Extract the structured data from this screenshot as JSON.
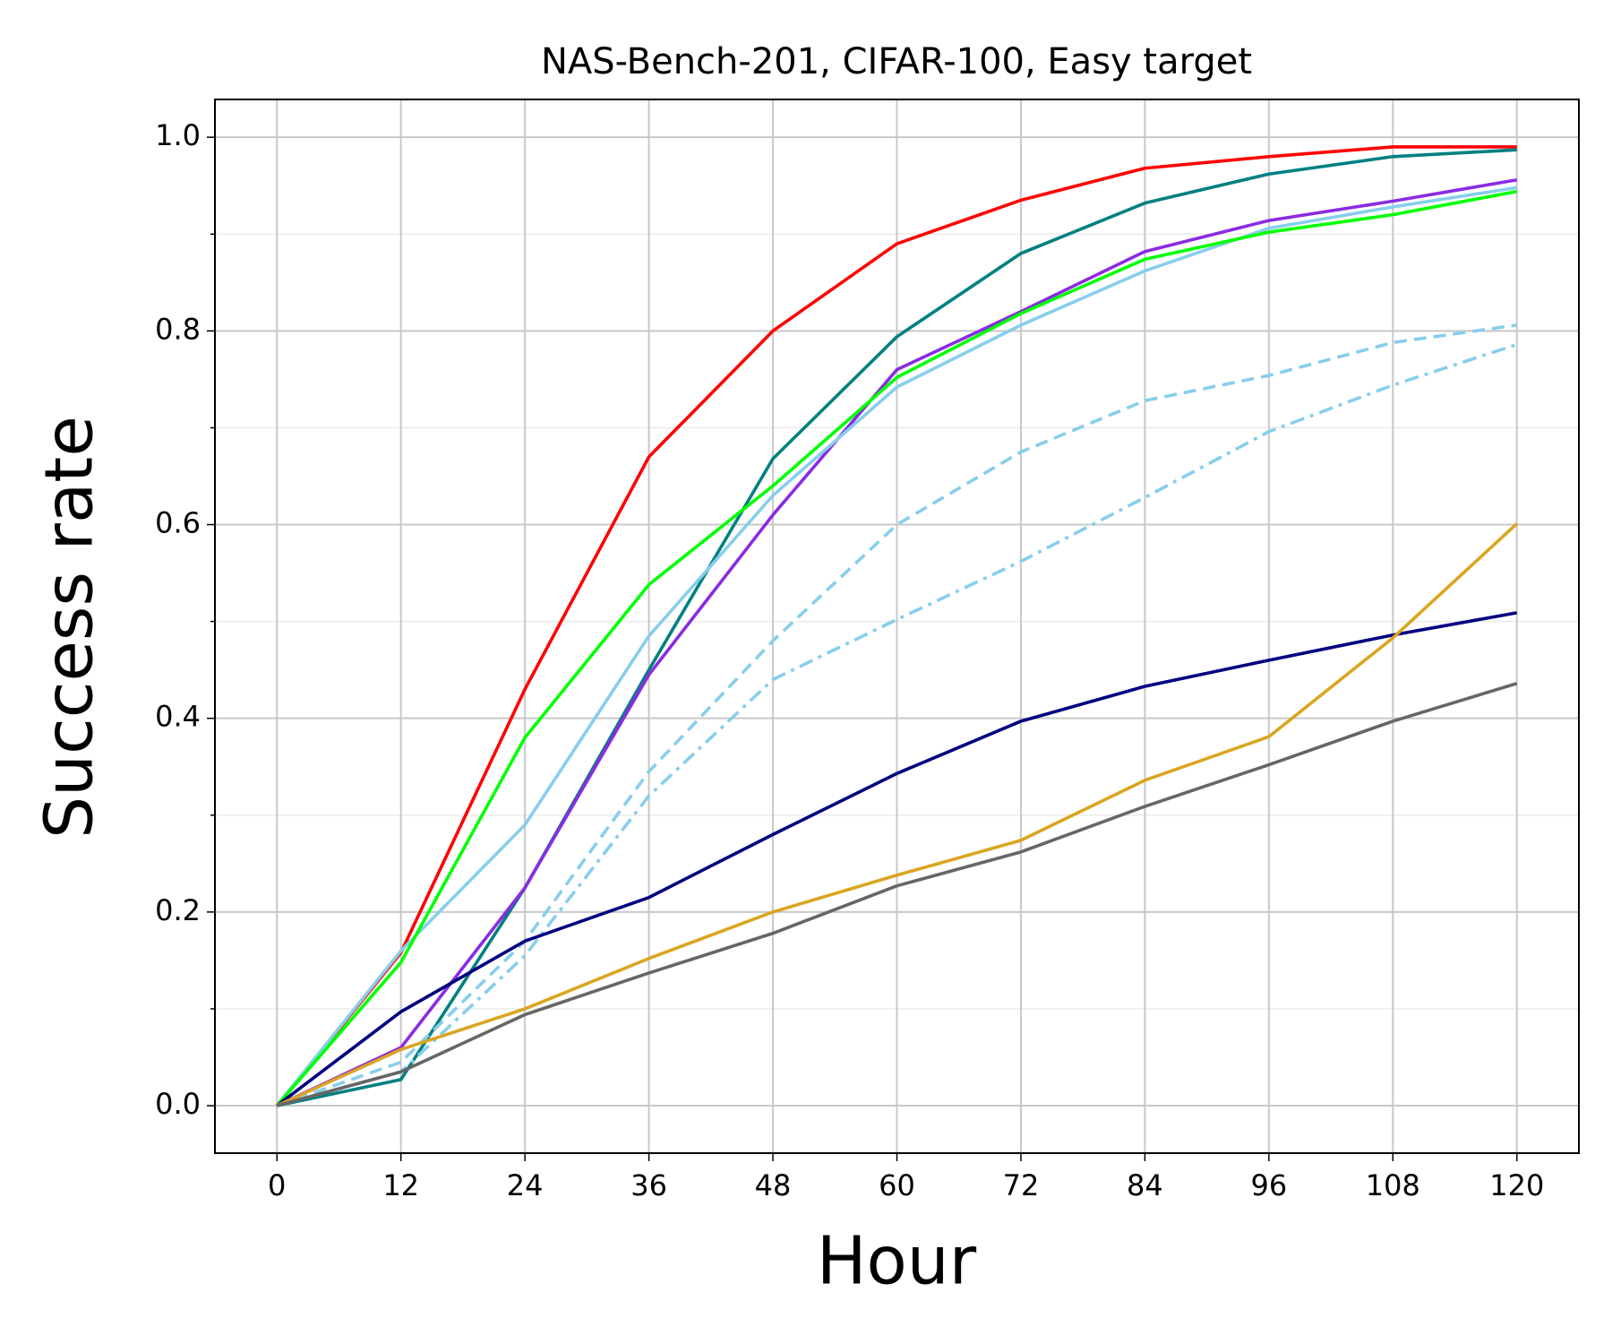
{
  "chart_data": {
    "type": "line",
    "title": "NAS-Bench-201, CIFAR-100, Easy target",
    "xlabel": "Hour",
    "ylabel": "Success rate",
    "x": [
      0,
      12,
      24,
      36,
      48,
      60,
      72,
      84,
      96,
      108,
      120
    ],
    "series": [
      {
        "color": "#ff0000",
        "dash": "solid",
        "values": [
          0,
          0.158,
          0.43,
          0.67,
          0.8,
          0.89,
          0.935,
          0.968,
          0.98,
          0.99,
          0.99
        ]
      },
      {
        "color": "#008080",
        "dash": "solid",
        "values": [
          0,
          0.027,
          0.225,
          0.45,
          0.668,
          0.794,
          0.88,
          0.932,
          0.962,
          0.98,
          0.987
        ]
      },
      {
        "color": "#8a2be2",
        "dash": "solid",
        "values": [
          0,
          0.06,
          0.225,
          0.445,
          0.61,
          0.76,
          0.82,
          0.882,
          0.914,
          0.934,
          0.956
        ]
      },
      {
        "color": "#87ceeb",
        "dash": "solid",
        "values": [
          0,
          0.16,
          0.29,
          0.485,
          0.63,
          0.742,
          0.806,
          0.862,
          0.906,
          0.928,
          0.948
        ]
      },
      {
        "color": "#00ff00",
        "dash": "solid",
        "values": [
          0,
          0.148,
          0.38,
          0.538,
          0.64,
          0.752,
          0.818,
          0.874,
          0.902,
          0.92,
          0.944
        ]
      },
      {
        "color": "#87ceeb",
        "dash": "dashed",
        "values": [
          0,
          0.045,
          0.17,
          0.345,
          0.48,
          0.6,
          0.675,
          0.728,
          0.754,
          0.788,
          0.806
        ]
      },
      {
        "color": "#87ceeb",
        "dash": "dashdot",
        "values": [
          0,
          0.035,
          0.155,
          0.32,
          0.44,
          0.502,
          0.562,
          0.628,
          0.696,
          0.744,
          0.786
        ]
      },
      {
        "color": "#000080",
        "dash": "solid",
        "values": [
          0,
          0.097,
          0.17,
          0.215,
          0.28,
          0.343,
          0.397,
          0.433,
          0.46,
          0.486,
          0.509
        ]
      },
      {
        "color": "#daa520",
        "dash": "solid",
        "values": [
          0,
          0.058,
          0.1,
          0.152,
          0.2,
          0.238,
          0.274,
          0.336,
          0.381,
          0.483,
          0.601
        ]
      },
      {
        "color": "#666666",
        "dash": "solid",
        "values": [
          0,
          0.035,
          0.094,
          0.137,
          0.178,
          0.227,
          0.262,
          0.309,
          0.352,
          0.397,
          0.436
        ]
      }
    ],
    "xlim": [
      -6,
      126
    ],
    "xticks": [
      0,
      12,
      24,
      36,
      48,
      60,
      72,
      84,
      96,
      108,
      120
    ],
    "ylim": [
      -0.049,
      1.039
    ],
    "yticks": [
      {
        "value": 0,
        "label": "0.0"
      },
      0.2,
      0.4,
      0.6,
      0.8,
      {
        "value": 1,
        "label": "1.0"
      }
    ],
    "yminor_ticks": [
      0.1,
      0.3,
      0.5,
      0.7,
      0.9
    ],
    "grid": true
  }
}
